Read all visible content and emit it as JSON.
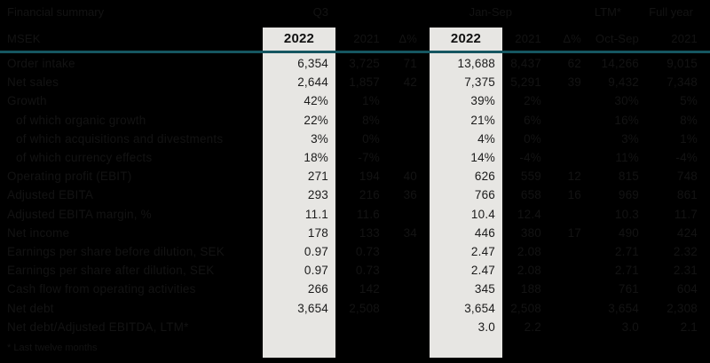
{
  "title": "Financial summary",
  "unit_label": "MSEK",
  "footnote": "* Last twelve months",
  "period_groups": {
    "quarter": "Q3",
    "ytd": "Jan-Sep",
    "ltm": "LTM*",
    "full_year": "Full year"
  },
  "column_headers": {
    "q_current": "2022",
    "q_previous": "2021",
    "q_delta": "Δ%",
    "ytd_current": "2022",
    "ytd_previous": "2021",
    "ytd_delta": "Δ%",
    "ltm_period": "Oct-Sep",
    "fy_year": "2021"
  },
  "colors": {
    "background": "#000000",
    "highlight_column": "#e7e6e3",
    "header_rule": "#165661",
    "dark_text": "#131313",
    "highlight_text": "#1b1b1b"
  },
  "chart_data": {
    "type": "table",
    "title": "Financial summary",
    "columns": [
      "MSEK",
      "Q3 2022",
      "Q3 2021",
      "Δ%",
      "Jan-Sep 2022",
      "Jan-Sep 2021",
      "Δ%",
      "LTM Oct-Sep",
      "Full year 2021"
    ],
    "rows": [
      {
        "label": "Order intake",
        "indent": false,
        "q22": "6,354",
        "q21": "3,725",
        "qd": "71",
        "y22": "13,688",
        "y21": "8,437",
        "yd": "62",
        "ltm": "14,266",
        "fy": "9,015"
      },
      {
        "label": "Net sales",
        "indent": false,
        "q22": "2,644",
        "q21": "1,857",
        "qd": "42",
        "y22": "7,375",
        "y21": "5,291",
        "yd": "39",
        "ltm": "9,432",
        "fy": "7,348"
      },
      {
        "label": "Growth",
        "indent": false,
        "q22": "42%",
        "q21": "1%",
        "qd": "",
        "y22": "39%",
        "y21": "2%",
        "yd": "",
        "ltm": "30%",
        "fy": "5%"
      },
      {
        "label": "of which organic growth",
        "indent": true,
        "q22": "22%",
        "q21": "8%",
        "qd": "",
        "y22": "21%",
        "y21": "6%",
        "yd": "",
        "ltm": "16%",
        "fy": "8%"
      },
      {
        "label": "of which acquisitions and divestments",
        "indent": true,
        "q22": "3%",
        "q21": "0%",
        "qd": "",
        "y22": "4%",
        "y21": "0%",
        "yd": "",
        "ltm": "3%",
        "fy": "1%"
      },
      {
        "label": "of which currency effects",
        "indent": true,
        "q22": "18%",
        "q21": "-7%",
        "qd": "",
        "y22": "14%",
        "y21": "-4%",
        "yd": "",
        "ltm": "11%",
        "fy": "-4%"
      },
      {
        "label": "Operating profit (EBIT)",
        "indent": false,
        "q22": "271",
        "q21": "194",
        "qd": "40",
        "y22": "626",
        "y21": "559",
        "yd": "12",
        "ltm": "815",
        "fy": "748"
      },
      {
        "label": "Adjusted EBITA",
        "indent": false,
        "q22": "293",
        "q21": "216",
        "qd": "36",
        "y22": "766",
        "y21": "658",
        "yd": "16",
        "ltm": "969",
        "fy": "861"
      },
      {
        "label": "Adjusted EBITA margin, %",
        "indent": false,
        "q22": "11.1",
        "q21": "11.6",
        "qd": "",
        "y22": "10.4",
        "y21": "12.4",
        "yd": "",
        "ltm": "10.3",
        "fy": "11.7"
      },
      {
        "label": "Net income",
        "indent": false,
        "q22": "178",
        "q21": "133",
        "qd": "34",
        "y22": "446",
        "y21": "380",
        "yd": "17",
        "ltm": "490",
        "fy": "424"
      },
      {
        "label": "Earnings per share before dilution, SEK",
        "indent": false,
        "q22": "0.97",
        "q21": "0.73",
        "qd": "",
        "y22": "2.47",
        "y21": "2.08",
        "yd": "",
        "ltm": "2.71",
        "fy": "2.32"
      },
      {
        "label": "Earnings per share after dilution, SEK",
        "indent": false,
        "q22": "0.97",
        "q21": "0.73",
        "qd": "",
        "y22": "2.47",
        "y21": "2.08",
        "yd": "",
        "ltm": "2.71",
        "fy": "2.31"
      },
      {
        "label": "Cash flow from operating activities",
        "indent": false,
        "q22": "266",
        "q21": "142",
        "qd": "",
        "y22": "345",
        "y21": "188",
        "yd": "",
        "ltm": "761",
        "fy": "604"
      },
      {
        "label": "Net debt",
        "indent": false,
        "q22": "3,654",
        "q21": "2,508",
        "qd": "",
        "y22": "3,654",
        "y21": "2,508",
        "yd": "",
        "ltm": "3,654",
        "fy": "2,308"
      },
      {
        "label": "Net debt/Adjusted EBITDA, LTM*",
        "indent": false,
        "q22": "",
        "q21": "",
        "qd": "",
        "y22": "3.0",
        "y21": "2.2",
        "yd": "",
        "ltm": "3.0",
        "fy": "2.1"
      }
    ]
  }
}
